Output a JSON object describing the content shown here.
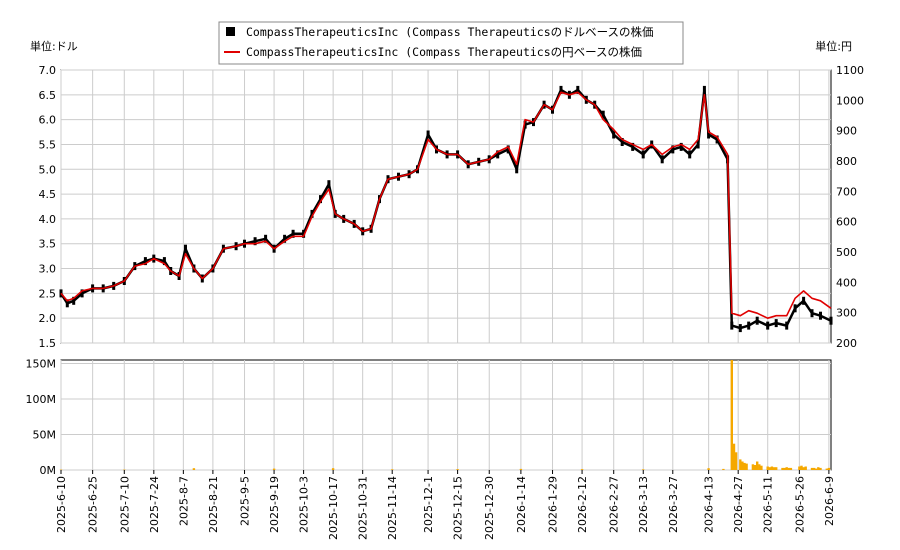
{
  "legend": {
    "items": [
      {
        "label": "CompassTherapeuticsInc (Compass Therapeuticsのドルベースの株価",
        "color": "#000000",
        "swatch": "square"
      },
      {
        "label": "CompassTherapeuticsInc (Compass Therapeuticsの円ベースの株価",
        "color": "#e00000",
        "swatch": "line"
      }
    ]
  },
  "axes": {
    "left_unit": "単位:ドル",
    "right_unit": "単位:円"
  },
  "chart_data": [
    {
      "type": "line",
      "series": [
        {
          "name": "CompassTherapeuticsInc (Compass Therapeuticsのドルベースの株価",
          "axis": "left",
          "color": "#000000",
          "points": [
            [
              "2025-06-10",
              2.5
            ],
            [
              "2025-06-13",
              2.3
            ],
            [
              "2025-06-16",
              2.35
            ],
            [
              "2025-06-20",
              2.5
            ],
            [
              "2025-06-25",
              2.6
            ],
            [
              "2025-06-30",
              2.6
            ],
            [
              "2025-07-05",
              2.65
            ],
            [
              "2025-07-10",
              2.75
            ],
            [
              "2025-07-15",
              3.05
            ],
            [
              "2025-07-20",
              3.15
            ],
            [
              "2025-07-24",
              3.2
            ],
            [
              "2025-07-29",
              3.15
            ],
            [
              "2025-08-01",
              2.95
            ],
            [
              "2025-08-05",
              2.85
            ],
            [
              "2025-08-08",
              3.4
            ],
            [
              "2025-08-12",
              3.0
            ],
            [
              "2025-08-16",
              2.8
            ],
            [
              "2025-08-21",
              3.0
            ],
            [
              "2025-08-26",
              3.4
            ],
            [
              "2025-09-01",
              3.45
            ],
            [
              "2025-09-05",
              3.5
            ],
            [
              "2025-09-10",
              3.55
            ],
            [
              "2025-09-15",
              3.6
            ],
            [
              "2025-09-19",
              3.4
            ],
            [
              "2025-09-24",
              3.6
            ],
            [
              "2025-09-28",
              3.7
            ],
            [
              "2025-10-03",
              3.7
            ],
            [
              "2025-10-07",
              4.1
            ],
            [
              "2025-10-11",
              4.4
            ],
            [
              "2025-10-15",
              4.7
            ],
            [
              "2025-10-18",
              4.1
            ],
            [
              "2025-10-22",
              4.0
            ],
            [
              "2025-10-27",
              3.9
            ],
            [
              "2025-10-31",
              3.75
            ],
            [
              "2025-11-04",
              3.8
            ],
            [
              "2025-11-08",
              4.4
            ],
            [
              "2025-11-12",
              4.8
            ],
            [
              "2025-11-17",
              4.85
            ],
            [
              "2025-11-22",
              4.9
            ],
            [
              "2025-11-26",
              5.0
            ],
            [
              "2025-12-01",
              5.7
            ],
            [
              "2025-12-05",
              5.4
            ],
            [
              "2025-12-10",
              5.3
            ],
            [
              "2025-12-15",
              5.3
            ],
            [
              "2025-12-20",
              5.1
            ],
            [
              "2025-12-25",
              5.15
            ],
            [
              "2025-12-30",
              5.2
            ],
            [
              "2026-01-03",
              5.3
            ],
            [
              "2026-01-08",
              5.4
            ],
            [
              "2026-01-12",
              5.0
            ],
            [
              "2026-01-16",
              5.9
            ],
            [
              "2026-01-20",
              5.95
            ],
            [
              "2026-01-25",
              6.3
            ],
            [
              "2026-01-29",
              6.2
            ],
            [
              "2026-02-02",
              6.6
            ],
            [
              "2026-02-06",
              6.5
            ],
            [
              "2026-02-10",
              6.6
            ],
            [
              "2026-02-14",
              6.4
            ],
            [
              "2026-02-18",
              6.3
            ],
            [
              "2026-02-22",
              6.1
            ],
            [
              "2026-02-27",
              5.7
            ],
            [
              "2026-03-03",
              5.55
            ],
            [
              "2026-03-08",
              5.45
            ],
            [
              "2026-03-13",
              5.3
            ],
            [
              "2026-03-17",
              5.5
            ],
            [
              "2026-03-22",
              5.2
            ],
            [
              "2026-03-27",
              5.4
            ],
            [
              "2026-03-31",
              5.45
            ],
            [
              "2026-04-04",
              5.3
            ],
            [
              "2026-04-08",
              5.5
            ],
            [
              "2026-04-11",
              6.6
            ],
            [
              "2026-04-13",
              5.7
            ],
            [
              "2026-04-17",
              5.6
            ],
            [
              "2026-04-22",
              5.2
            ],
            [
              "2026-04-24",
              1.85
            ],
            [
              "2026-04-28",
              1.8
            ],
            [
              "2026-05-02",
              1.85
            ],
            [
              "2026-05-06",
              1.95
            ],
            [
              "2026-05-11",
              1.85
            ],
            [
              "2026-05-15",
              1.9
            ],
            [
              "2026-05-20",
              1.85
            ],
            [
              "2026-05-24",
              2.2
            ],
            [
              "2026-05-28",
              2.35
            ],
            [
              "2026-06-01",
              2.1
            ],
            [
              "2026-06-05",
              2.05
            ],
            [
              "2026-06-10",
              1.95
            ]
          ]
        },
        {
          "name": "CompassTherapeuticsInc (Compass Therapeuticsの円ベースの株価",
          "axis": "right",
          "color": "#e00000",
          "points": [
            [
              "2025-06-10",
              2.5
            ],
            [
              "2025-06-13",
              2.35
            ],
            [
              "2025-06-16",
              2.4
            ],
            [
              "2025-06-20",
              2.55
            ],
            [
              "2025-06-25",
              2.6
            ],
            [
              "2025-06-30",
              2.6
            ],
            [
              "2025-07-05",
              2.65
            ],
            [
              "2025-07-10",
              2.75
            ],
            [
              "2025-07-15",
              3.05
            ],
            [
              "2025-07-20",
              3.1
            ],
            [
              "2025-07-24",
              3.2
            ],
            [
              "2025-07-29",
              3.1
            ],
            [
              "2025-08-01",
              2.95
            ],
            [
              "2025-08-05",
              2.85
            ],
            [
              "2025-08-08",
              3.3
            ],
            [
              "2025-08-12",
              3.0
            ],
            [
              "2025-08-16",
              2.8
            ],
            [
              "2025-08-21",
              3.0
            ],
            [
              "2025-08-26",
              3.4
            ],
            [
              "2025-09-01",
              3.45
            ],
            [
              "2025-09-05",
              3.5
            ],
            [
              "2025-09-10",
              3.5
            ],
            [
              "2025-09-15",
              3.55
            ],
            [
              "2025-09-19",
              3.4
            ],
            [
              "2025-09-24",
              3.55
            ],
            [
              "2025-09-28",
              3.65
            ],
            [
              "2025-10-03",
              3.65
            ],
            [
              "2025-10-07",
              4.05
            ],
            [
              "2025-10-11",
              4.35
            ],
            [
              "2025-10-15",
              4.6
            ],
            [
              "2025-10-18",
              4.1
            ],
            [
              "2025-10-22",
              4.0
            ],
            [
              "2025-10-27",
              3.9
            ],
            [
              "2025-10-31",
              3.75
            ],
            [
              "2025-11-04",
              3.8
            ],
            [
              "2025-11-08",
              4.4
            ],
            [
              "2025-11-12",
              4.8
            ],
            [
              "2025-11-17",
              4.85
            ],
            [
              "2025-11-22",
              4.9
            ],
            [
              "2025-11-26",
              5.0
            ],
            [
              "2025-12-01",
              5.6
            ],
            [
              "2025-12-05",
              5.4
            ],
            [
              "2025-12-10",
              5.3
            ],
            [
              "2025-12-15",
              5.3
            ],
            [
              "2025-12-20",
              5.1
            ],
            [
              "2025-12-25",
              5.15
            ],
            [
              "2025-12-30",
              5.2
            ],
            [
              "2026-01-03",
              5.35
            ],
            [
              "2026-01-08",
              5.45
            ],
            [
              "2026-01-12",
              5.1
            ],
            [
              "2026-01-16",
              6.0
            ],
            [
              "2026-01-20",
              5.95
            ],
            [
              "2026-01-25",
              6.3
            ],
            [
              "2026-01-29",
              6.2
            ],
            [
              "2026-02-02",
              6.55
            ],
            [
              "2026-02-06",
              6.5
            ],
            [
              "2026-02-10",
              6.55
            ],
            [
              "2026-02-14",
              6.4
            ],
            [
              "2026-02-18",
              6.3
            ],
            [
              "2026-02-22",
              6.0
            ],
            [
              "2026-02-27",
              5.8
            ],
            [
              "2026-03-03",
              5.6
            ],
            [
              "2026-03-08",
              5.5
            ],
            [
              "2026-03-13",
              5.4
            ],
            [
              "2026-03-17",
              5.5
            ],
            [
              "2026-03-22",
              5.3
            ],
            [
              "2026-03-27",
              5.45
            ],
            [
              "2026-03-31",
              5.5
            ],
            [
              "2026-04-04",
              5.4
            ],
            [
              "2026-04-08",
              5.6
            ],
            [
              "2026-04-11",
              6.5
            ],
            [
              "2026-04-13",
              5.75
            ],
            [
              "2026-04-17",
              5.65
            ],
            [
              "2026-04-22",
              5.3
            ],
            [
              "2026-04-24",
              2.1
            ],
            [
              "2026-04-28",
              2.05
            ],
            [
              "2026-05-02",
              2.15
            ],
            [
              "2026-05-06",
              2.1
            ],
            [
              "2026-05-11",
              2.0
            ],
            [
              "2026-05-15",
              2.05
            ],
            [
              "2026-05-20",
              2.05
            ],
            [
              "2026-05-24",
              2.4
            ],
            [
              "2026-05-28",
              2.55
            ],
            [
              "2026-06-01",
              2.4
            ],
            [
              "2026-06-05",
              2.35
            ],
            [
              "2026-06-10",
              2.2
            ]
          ]
        }
      ],
      "y_left": {
        "min": 1.5,
        "max": 7.0,
        "ticks": [
          "1.5",
          "2.0",
          "2.5",
          "3.0",
          "3.5",
          "4.0",
          "4.5",
          "5.0",
          "5.5",
          "6.0",
          "6.5",
          "7.0"
        ]
      },
      "y_right": {
        "min": 200,
        "max": 1100,
        "ticks": [
          "200",
          "300",
          "400",
          "500",
          "600",
          "700",
          "800",
          "900",
          "1000",
          "1100"
        ]
      },
      "x_range": [
        "2025-06-10",
        "2026-06-10"
      ],
      "x_ticks": [
        "2025-6-10",
        "2025-6-25",
        "2025-7-10",
        "2025-7-24",
        "2025-8-7",
        "2025-8-21",
        "2025-9-5",
        "2025-9-19",
        "2025-10-3",
        "2025-10-17",
        "2025-10-31",
        "2025-11-14",
        "2025-12-1",
        "2025-12-15",
        "2025-12-30",
        "2026-1-14",
        "2026-1-29",
        "2026-2-12",
        "2026-2-27",
        "2026-3-13",
        "2026-3-27",
        "2026-4-13",
        "2026-4-27",
        "2026-5-11",
        "2026-5-26",
        "2026-6-9"
      ],
      "grid": true
    },
    {
      "type": "bar",
      "series": [
        {
          "name": "volume",
          "color": "#f5a800",
          "points": [
            [
              "2025-06-10",
              0.5
            ],
            [
              "2025-07-10",
              0.6
            ],
            [
              "2025-08-12",
              2.5
            ],
            [
              "2025-09-19",
              2.0
            ],
            [
              "2025-10-17",
              2.5
            ],
            [
              "2025-11-14",
              1.0
            ],
            [
              "2025-12-15",
              1.2
            ],
            [
              "2026-01-14",
              1.5
            ],
            [
              "2026-02-12",
              1.2
            ],
            [
              "2026-03-13",
              1.0
            ],
            [
              "2026-04-13",
              2.5
            ],
            [
              "2026-04-20",
              1.5
            ],
            [
              "2026-04-24",
              155
            ],
            [
              "2026-04-25",
              37
            ],
            [
              "2026-04-26",
              25
            ],
            [
              "2026-04-28",
              15
            ],
            [
              "2026-04-29",
              12
            ],
            [
              "2026-04-30",
              10
            ],
            [
              "2026-05-01",
              9
            ],
            [
              "2026-05-04",
              8
            ],
            [
              "2026-05-05",
              7
            ],
            [
              "2026-05-06",
              12
            ],
            [
              "2026-05-07",
              8
            ],
            [
              "2026-05-08",
              6
            ],
            [
              "2026-05-11",
              5
            ],
            [
              "2026-05-12",
              4
            ],
            [
              "2026-05-13",
              5
            ],
            [
              "2026-05-14",
              4
            ],
            [
              "2026-05-15",
              4
            ],
            [
              "2026-05-18",
              3
            ],
            [
              "2026-05-19",
              3
            ],
            [
              "2026-05-20",
              4
            ],
            [
              "2026-05-21",
              3
            ],
            [
              "2026-05-22",
              3
            ],
            [
              "2026-05-26",
              5
            ],
            [
              "2026-05-27",
              6
            ],
            [
              "2026-05-28",
              4
            ],
            [
              "2026-05-29",
              5
            ],
            [
              "2026-06-01",
              3
            ],
            [
              "2026-06-02",
              3
            ],
            [
              "2026-06-03",
              2
            ],
            [
              "2026-06-04",
              4
            ],
            [
              "2026-06-05",
              3
            ],
            [
              "2026-06-08",
              2
            ],
            [
              "2026-06-09",
              3
            ]
          ]
        }
      ],
      "y": {
        "min": 0,
        "max": 155,
        "ticks": [
          "0M",
          "50M",
          "100M",
          "150M"
        ]
      },
      "x_range": [
        "2025-06-10",
        "2026-06-10"
      ],
      "grid": true
    }
  ]
}
